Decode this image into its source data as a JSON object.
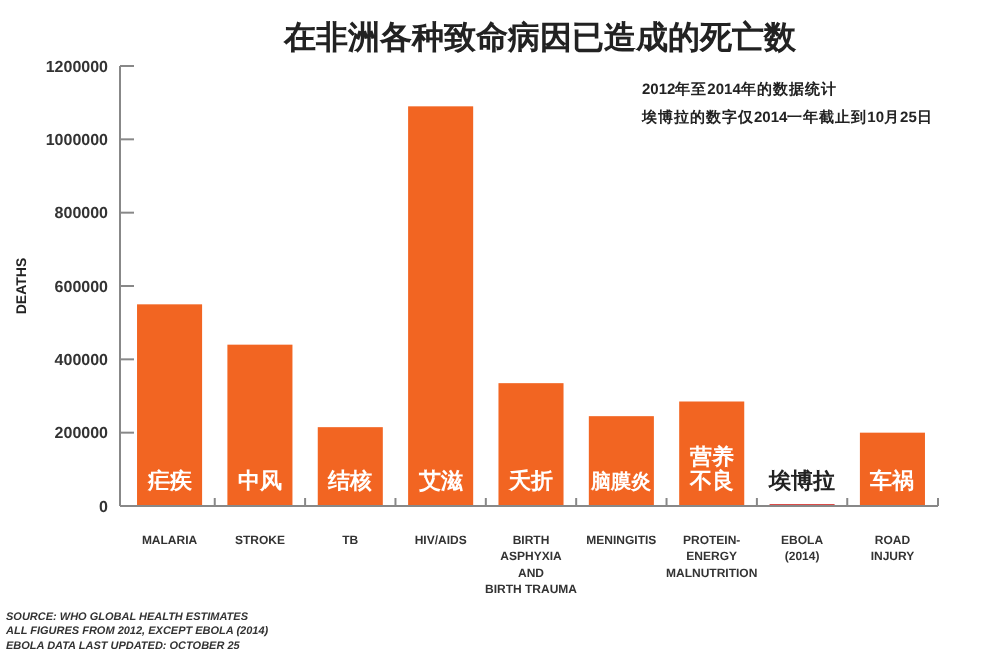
{
  "chart_data": {
    "type": "bar",
    "title": "在非洲各种致命病因已造成的死亡数",
    "ylabel": "DEATHS",
    "categories": [
      "MALARIA",
      "STROKE",
      "TB",
      "HIV/AIDS",
      "BIRTH\nASPHYXIA\nAND\nBIRTH TRAUMA",
      "MENINGITIS",
      "PROTEIN-\nENERGY\nMALNUTRITION",
      "EBOLA\n(2014)",
      "ROAD\nINJURY"
    ],
    "values": [
      550000,
      440000,
      215000,
      1090000,
      335000,
      245000,
      285000,
      5000,
      200000
    ],
    "colors": [
      "#f26522",
      "#f26522",
      "#f26522",
      "#f26522",
      "#f26522",
      "#f26522",
      "#f26522",
      "#d42a26",
      "#f26522"
    ],
    "ylim": [
      0,
      1200000
    ],
    "yticks": [
      0,
      200000,
      400000,
      600000,
      800000,
      1000000,
      1200000
    ],
    "annotations": [
      "疟疾",
      "中风",
      "结核",
      "艾滋",
      "夭折",
      "脑膜炎",
      "营养不良",
      "埃博拉",
      "车祸",
      "2012年至2014年的数据统计",
      "埃博拉的数字仅2014一年截止到10月25日",
      "SOURCE: WHO GLOBAL HEALTH ESTIMATES\nALL FIGURES FROM 2012, EXCEPT EBOLA (2014)\nEBOLA DATA LAST UPDATED: OCTOBER 25"
    ]
  }
}
